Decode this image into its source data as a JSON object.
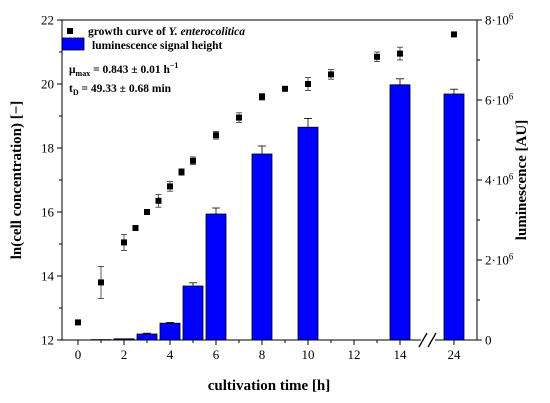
{
  "chart_data": {
    "type": "bar+scatter",
    "xlabel": "cultivation time [h]",
    "ylabel_left": "ln(cell concentration) [−]",
    "ylabel_right": "luminescence [AU]",
    "x_ticks": [
      "0",
      "2",
      "4",
      "6",
      "8",
      "10",
      "12",
      "14",
      "24"
    ],
    "x_break": "between 14 and 24",
    "ylim_left": [
      12,
      22
    ],
    "y_ticks_left": [
      "12",
      "14",
      "16",
      "18",
      "20",
      "22"
    ],
    "ylim_right": [
      0,
      8000000
    ],
    "y_ticks_right": [
      {
        "base": "0",
        "exp": ""
      },
      {
        "base": "2·10",
        "exp": "6"
      },
      {
        "base": "4·10",
        "exp": "6"
      },
      {
        "base": "6·10",
        "exp": "6"
      },
      {
        "base": "8·10",
        "exp": "6"
      }
    ],
    "legend": {
      "placement": "top-left",
      "scatter_label_prefix": "growth curve of ",
      "scatter_label_italic": "Y. enterocolitica",
      "bar_label": "luminescence signal height"
    },
    "annotations": {
      "mu_symbol": "μ",
      "mu_sub": "max",
      "mu_value": " = 0.843 ± 0.01 h",
      "mu_sup": "−1",
      "td_symbol": "t",
      "td_sub": "D",
      "td_value": " = 49.33 ± 0.68 min"
    },
    "colors": {
      "bars": "#0000ff",
      "points": "#000000"
    },
    "growth_curve": [
      {
        "x": 0,
        "y": 12.55,
        "err": 0
      },
      {
        "x": 1,
        "y": 13.8,
        "err": 0.5
      },
      {
        "x": 2,
        "y": 15.05,
        "err": 0.25
      },
      {
        "x": 2.5,
        "y": 15.5,
        "err": 0.08
      },
      {
        "x": 3,
        "y": 16.0,
        "err": 0.05
      },
      {
        "x": 3.5,
        "y": 16.35,
        "err": 0.2
      },
      {
        "x": 4,
        "y": 16.8,
        "err": 0.15
      },
      {
        "x": 4.5,
        "y": 17.25,
        "err": 0.1
      },
      {
        "x": 5,
        "y": 17.6,
        "err": 0.12
      },
      {
        "x": 6,
        "y": 18.4,
        "err": 0.12
      },
      {
        "x": 7,
        "y": 18.95,
        "err": 0.15
      },
      {
        "x": 8,
        "y": 19.6,
        "err": 0.1
      },
      {
        "x": 9,
        "y": 19.85,
        "err": 0.05
      },
      {
        "x": 10,
        "y": 20.0,
        "err": 0.2
      },
      {
        "x": 11,
        "y": 20.3,
        "err": 0.15
      },
      {
        "x": 13,
        "y": 20.85,
        "err": 0.15
      },
      {
        "x": 14,
        "y": 20.95,
        "err": 0.2
      },
      {
        "x": 24,
        "y": 21.55,
        "err": 0
      }
    ],
    "luminescence": [
      {
        "x": 1,
        "value": 10000,
        "err": 0
      },
      {
        "x": 2,
        "value": 30000,
        "err": 0
      },
      {
        "x": 3,
        "value": 150000,
        "err": 20000
      },
      {
        "x": 4,
        "value": 420000,
        "err": 20000
      },
      {
        "x": 5,
        "value": 1350000,
        "err": 80000
      },
      {
        "x": 6,
        "value": 3150000,
        "err": 150000
      },
      {
        "x": 8,
        "value": 4650000,
        "err": 200000
      },
      {
        "x": 10,
        "value": 5320000,
        "err": 220000
      },
      {
        "x": 14,
        "value": 6380000,
        "err": 150000
      },
      {
        "x": 24,
        "value": 6150000,
        "err": 120000
      }
    ]
  }
}
